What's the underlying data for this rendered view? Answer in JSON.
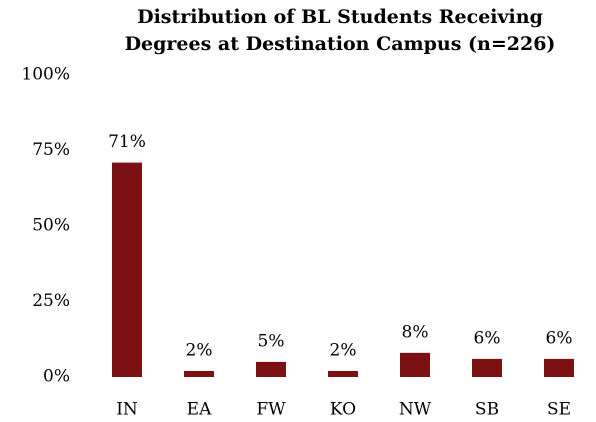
{
  "chart_data": {
    "type": "bar",
    "title": "Distribution of BL Students Receiving Degrees at Destination Campus (n=226)",
    "categories": [
      "IN",
      "EA",
      "FW",
      "KO",
      "NW",
      "SB",
      "SE"
    ],
    "values": [
      71,
      2,
      5,
      2,
      8,
      6,
      6
    ],
    "value_labels": [
      "71%",
      "2%",
      "5%",
      "2%",
      "8%",
      "6%",
      "6%"
    ],
    "color": "#7b1113",
    "ylim": [
      0,
      100
    ],
    "yticks": [
      {
        "value": 0,
        "label": "0%"
      },
      {
        "value": 25,
        "label": "25%"
      },
      {
        "value": 50,
        "label": "50%"
      },
      {
        "value": 75,
        "label": "75%"
      },
      {
        "value": 100,
        "label": "100%"
      }
    ],
    "grid": false
  }
}
